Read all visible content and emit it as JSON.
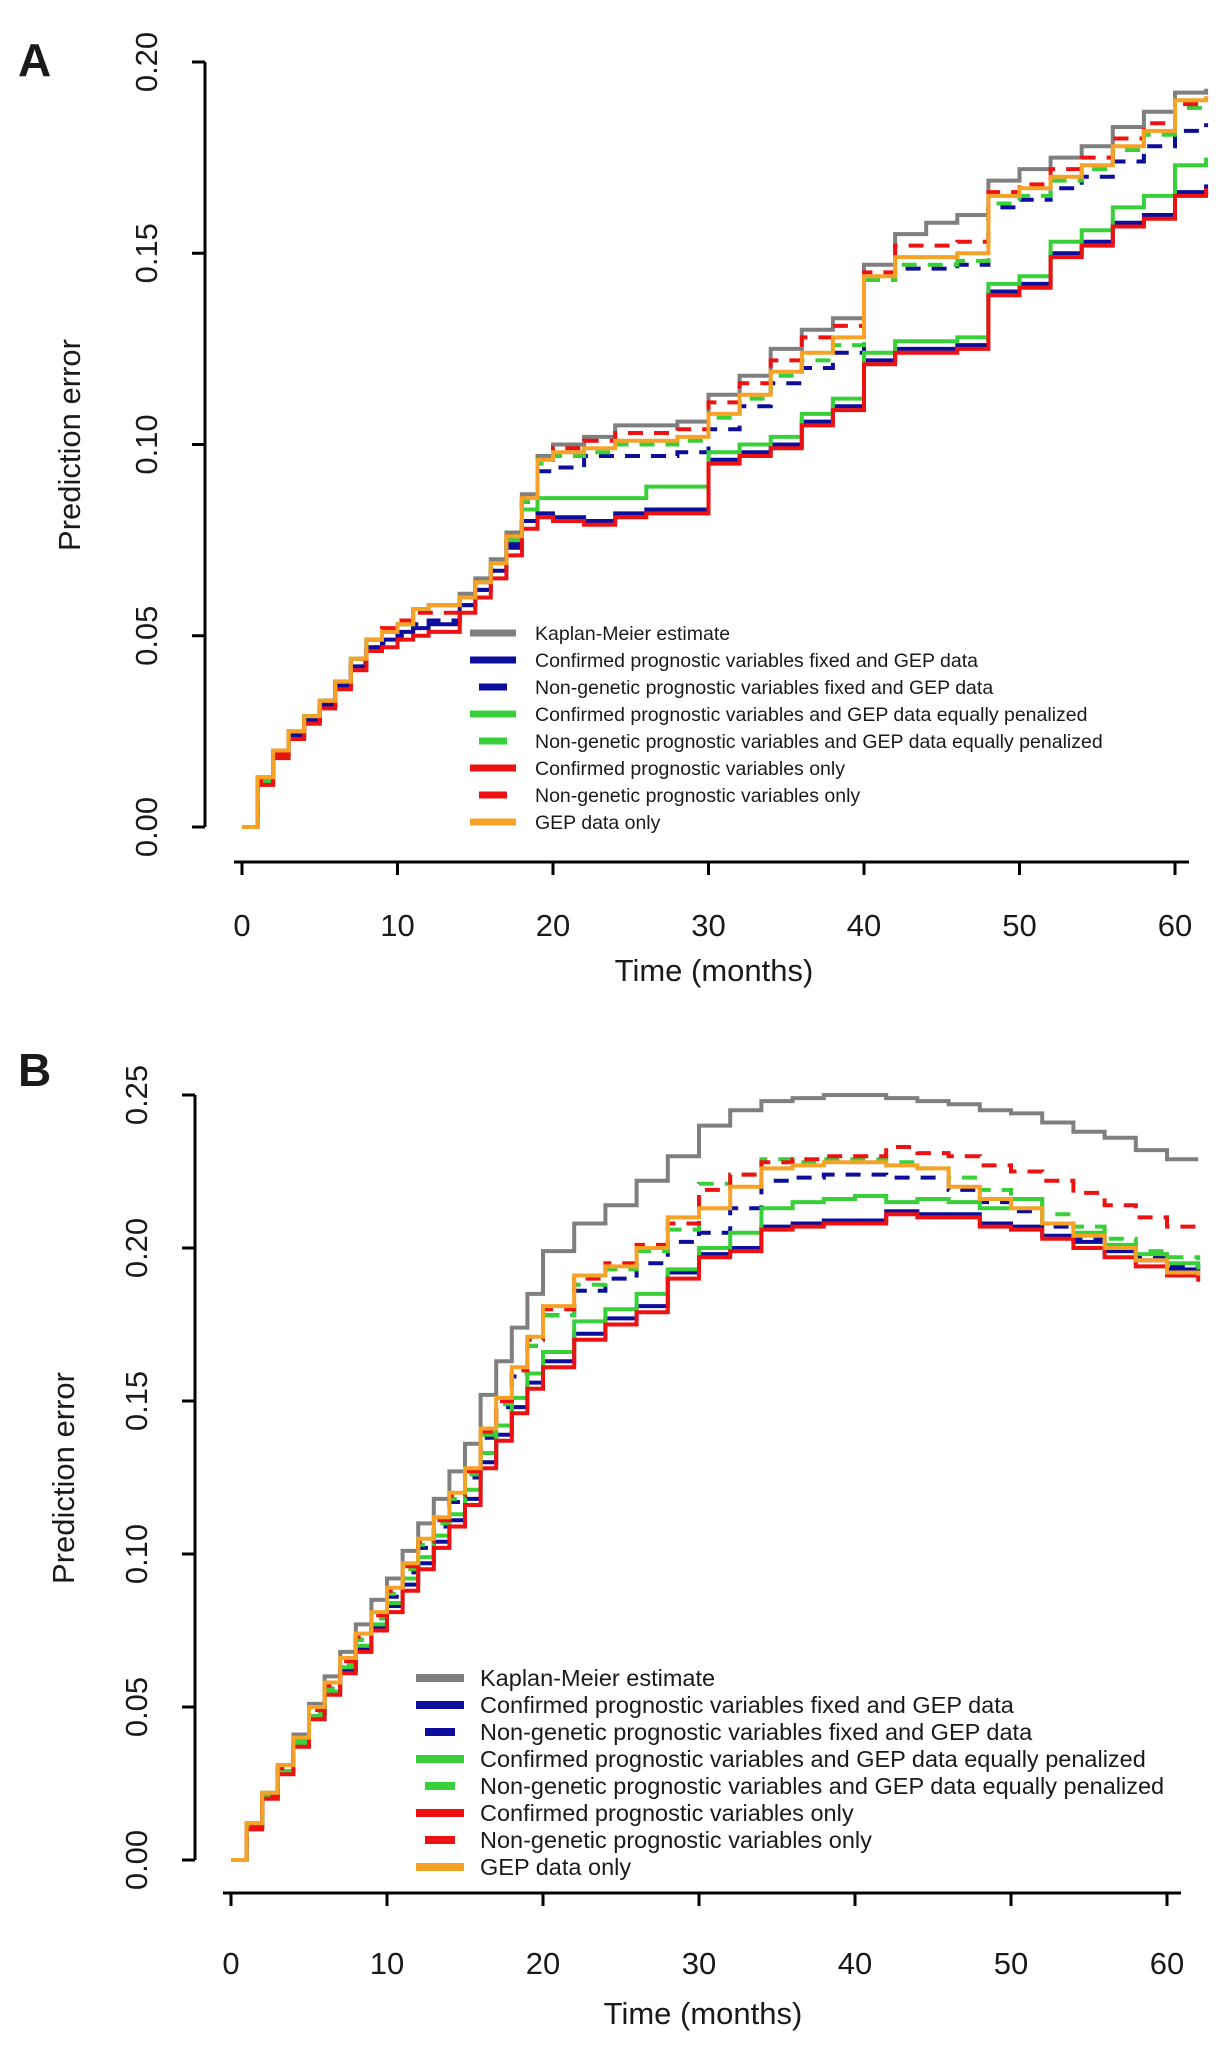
{
  "figure": {
    "background": "#ffffff",
    "text_color": "#1a1a1a",
    "panel_label_color": "#4b6e83",
    "axis_color": "#000000"
  },
  "colors": {
    "gray": "#7f7f7f",
    "navy": "#0d0d9c",
    "green": "#38d038",
    "red": "#ee1111",
    "orange": "#f5a226"
  },
  "chart_data": [
    {
      "panel": "A",
      "type": "line",
      "subtype": "step",
      "xlabel": "Time (months)",
      "ylabel": "Prediction error",
      "xlim": [
        0,
        62
      ],
      "ylim": [
        0,
        0.2
      ],
      "x_ticks": [
        0,
        10,
        20,
        30,
        40,
        50,
        60
      ],
      "y_ticks": [
        0,
        0.05,
        0.1,
        0.15,
        0.2
      ],
      "y_tick_labels": [
        "0.00",
        "0.05",
        "0.10",
        "0.15",
        "0.20"
      ],
      "grid": false,
      "legend_position": "inside-lower-right",
      "x": [
        0,
        1,
        2,
        3,
        4,
        5,
        6,
        7,
        8,
        9,
        10,
        11,
        12,
        13,
        14,
        15,
        16,
        17,
        18,
        19,
        20,
        22,
        24,
        26,
        28,
        30,
        32,
        34,
        36,
        38,
        40,
        42,
        44,
        46,
        48,
        50,
        52,
        54,
        56,
        58,
        60,
        62
      ],
      "series": [
        {
          "name": "Kaplan-Meier estimate",
          "color": "gray",
          "dash": false,
          "values": [
            0.0,
            0.013,
            0.02,
            0.025,
            0.029,
            0.033,
            0.038,
            0.044,
            0.049,
            0.051,
            0.053,
            0.057,
            0.058,
            0.058,
            0.061,
            0.065,
            0.07,
            0.077,
            0.087,
            0.097,
            0.1,
            0.102,
            0.105,
            0.105,
            0.106,
            0.113,
            0.118,
            0.125,
            0.13,
            0.133,
            0.147,
            0.155,
            0.158,
            0.16,
            0.169,
            0.172,
            0.175,
            0.178,
            0.183,
            0.187,
            0.192,
            0.193
          ]
        },
        {
          "name": "Confirmed prognostic variables fixed and GEP data",
          "color": "navy",
          "dash": false,
          "values": [
            0.0,
            0.012,
            0.019,
            0.024,
            0.028,
            0.032,
            0.037,
            0.042,
            0.047,
            0.049,
            0.051,
            0.052,
            0.053,
            0.053,
            0.058,
            0.062,
            0.067,
            0.073,
            0.08,
            0.082,
            0.081,
            0.08,
            0.082,
            0.083,
            0.083,
            0.096,
            0.098,
            0.1,
            0.106,
            0.11,
            0.122,
            0.125,
            0.125,
            0.126,
            0.14,
            0.142,
            0.15,
            0.153,
            0.158,
            0.16,
            0.166,
            0.168
          ]
        },
        {
          "name": "Non-genetic prognostic variables fixed and GEP data",
          "color": "navy",
          "dash": true,
          "values": [
            0.0,
            0.012,
            0.019,
            0.024,
            0.028,
            0.032,
            0.037,
            0.043,
            0.047,
            0.048,
            0.05,
            0.053,
            0.054,
            0.054,
            0.058,
            0.062,
            0.067,
            0.074,
            0.085,
            0.093,
            0.094,
            0.097,
            0.097,
            0.097,
            0.098,
            0.104,
            0.11,
            0.116,
            0.12,
            0.124,
            0.143,
            0.146,
            0.146,
            0.147,
            0.162,
            0.164,
            0.167,
            0.17,
            0.174,
            0.178,
            0.182,
            0.184
          ]
        },
        {
          "name": "Confirmed prognostic variables and GEP data equally penalized",
          "color": "green",
          "dash": false,
          "values": [
            0.0,
            0.012,
            0.019,
            0.025,
            0.029,
            0.033,
            0.038,
            0.044,
            0.049,
            0.051,
            0.053,
            0.057,
            0.058,
            0.058,
            0.06,
            0.064,
            0.069,
            0.075,
            0.083,
            0.086,
            0.086,
            0.086,
            0.086,
            0.089,
            0.089,
            0.098,
            0.1,
            0.102,
            0.108,
            0.112,
            0.124,
            0.127,
            0.127,
            0.128,
            0.142,
            0.144,
            0.153,
            0.156,
            0.162,
            0.165,
            0.173,
            0.175
          ]
        },
        {
          "name": "Non-genetic prognostic variables and GEP data equally penalized",
          "color": "green",
          "dash": true,
          "values": [
            0.0,
            0.012,
            0.019,
            0.025,
            0.029,
            0.033,
            0.038,
            0.044,
            0.049,
            0.051,
            0.053,
            0.057,
            0.058,
            0.058,
            0.06,
            0.064,
            0.069,
            0.075,
            0.085,
            0.095,
            0.097,
            0.098,
            0.1,
            0.1,
            0.101,
            0.107,
            0.112,
            0.118,
            0.122,
            0.126,
            0.143,
            0.147,
            0.147,
            0.148,
            0.163,
            0.165,
            0.169,
            0.172,
            0.177,
            0.181,
            0.188,
            0.19
          ]
        },
        {
          "name": "Confirmed prognostic variables only",
          "color": "red",
          "dash": false,
          "values": [
            0.0,
            0.011,
            0.018,
            0.023,
            0.027,
            0.031,
            0.036,
            0.041,
            0.046,
            0.047,
            0.049,
            0.05,
            0.051,
            0.051,
            0.056,
            0.06,
            0.065,
            0.071,
            0.078,
            0.081,
            0.08,
            0.079,
            0.081,
            0.082,
            0.082,
            0.095,
            0.097,
            0.099,
            0.105,
            0.109,
            0.121,
            0.124,
            0.124,
            0.125,
            0.139,
            0.141,
            0.149,
            0.152,
            0.157,
            0.159,
            0.165,
            0.167
          ]
        },
        {
          "name": "Non-genetic prognostic variables only",
          "color": "red",
          "dash": true,
          "values": [
            0.0,
            0.012,
            0.019,
            0.025,
            0.029,
            0.033,
            0.038,
            0.044,
            0.049,
            0.052,
            0.054,
            0.056,
            0.056,
            0.056,
            0.06,
            0.064,
            0.069,
            0.076,
            0.086,
            0.096,
            0.099,
            0.101,
            0.103,
            0.103,
            0.104,
            0.111,
            0.116,
            0.122,
            0.128,
            0.131,
            0.145,
            0.152,
            0.152,
            0.153,
            0.166,
            0.168,
            0.172,
            0.175,
            0.18,
            0.184,
            0.189,
            0.191
          ]
        },
        {
          "name": "GEP data only",
          "color": "orange",
          "dash": false,
          "values": [
            0.0,
            0.013,
            0.02,
            0.025,
            0.029,
            0.033,
            0.038,
            0.044,
            0.049,
            0.051,
            0.053,
            0.057,
            0.058,
            0.058,
            0.06,
            0.064,
            0.069,
            0.076,
            0.086,
            0.096,
            0.098,
            0.099,
            0.101,
            0.101,
            0.102,
            0.108,
            0.113,
            0.119,
            0.124,
            0.128,
            0.144,
            0.149,
            0.149,
            0.15,
            0.165,
            0.167,
            0.17,
            0.173,
            0.178,
            0.182,
            0.19,
            0.191
          ]
        }
      ]
    },
    {
      "panel": "B",
      "type": "line",
      "subtype": "step",
      "xlabel": "Time (months)",
      "ylabel": "Prediction error",
      "xlim": [
        0,
        62
      ],
      "ylim": [
        0,
        0.25
      ],
      "x_ticks": [
        0,
        10,
        20,
        30,
        40,
        50,
        60
      ],
      "y_ticks": [
        0,
        0.05,
        0.1,
        0.15,
        0.2,
        0.25
      ],
      "y_tick_labels": [
        "0.00",
        "0.05",
        "0.10",
        "0.15",
        "0.20",
        "0.25"
      ],
      "grid": false,
      "legend_position": "inside-lower-right",
      "x": [
        0,
        1,
        2,
        3,
        4,
        5,
        6,
        7,
        8,
        9,
        10,
        11,
        12,
        13,
        14,
        15,
        16,
        17,
        18,
        19,
        20,
        22,
        24,
        26,
        28,
        30,
        32,
        34,
        36,
        38,
        40,
        42,
        44,
        46,
        48,
        50,
        52,
        54,
        56,
        58,
        60,
        62
      ],
      "series": [
        {
          "name": "Kaplan-Meier estimate",
          "color": "gray",
          "dash": false,
          "values": [
            0.0,
            0.012,
            0.022,
            0.031,
            0.041,
            0.051,
            0.06,
            0.068,
            0.077,
            0.085,
            0.092,
            0.101,
            0.11,
            0.118,
            0.127,
            0.136,
            0.152,
            0.163,
            0.174,
            0.185,
            0.199,
            0.208,
            0.214,
            0.222,
            0.23,
            0.24,
            0.245,
            0.248,
            0.249,
            0.25,
            0.25,
            0.249,
            0.248,
            0.247,
            0.245,
            0.244,
            0.241,
            0.238,
            0.236,
            0.232,
            0.229,
            0.229
          ]
        },
        {
          "name": "Confirmed prognostic variables fixed and GEP data",
          "color": "navy",
          "dash": false,
          "values": [
            0.0,
            0.011,
            0.021,
            0.029,
            0.038,
            0.047,
            0.055,
            0.062,
            0.069,
            0.076,
            0.083,
            0.09,
            0.097,
            0.104,
            0.111,
            0.118,
            0.13,
            0.139,
            0.148,
            0.156,
            0.163,
            0.172,
            0.177,
            0.181,
            0.192,
            0.198,
            0.2,
            0.207,
            0.208,
            0.209,
            0.209,
            0.212,
            0.211,
            0.211,
            0.208,
            0.207,
            0.204,
            0.202,
            0.199,
            0.196,
            0.193,
            0.192
          ]
        },
        {
          "name": "Non-genetic prognostic variables fixed and GEP data",
          "color": "navy",
          "dash": true,
          "values": [
            0.0,
            0.011,
            0.021,
            0.03,
            0.039,
            0.048,
            0.056,
            0.064,
            0.072,
            0.079,
            0.086,
            0.094,
            0.102,
            0.109,
            0.117,
            0.125,
            0.138,
            0.148,
            0.158,
            0.168,
            0.178,
            0.186,
            0.19,
            0.195,
            0.202,
            0.205,
            0.213,
            0.222,
            0.223,
            0.224,
            0.224,
            0.223,
            0.223,
            0.219,
            0.215,
            0.212,
            0.207,
            0.203,
            0.2,
            0.197,
            0.194,
            0.193
          ]
        },
        {
          "name": "Confirmed prognostic variables and GEP data equally penalized",
          "color": "green",
          "dash": false,
          "values": [
            0.0,
            0.011,
            0.021,
            0.029,
            0.038,
            0.047,
            0.055,
            0.063,
            0.07,
            0.077,
            0.084,
            0.092,
            0.099,
            0.106,
            0.113,
            0.121,
            0.133,
            0.142,
            0.151,
            0.159,
            0.166,
            0.176,
            0.18,
            0.185,
            0.193,
            0.2,
            0.205,
            0.213,
            0.215,
            0.216,
            0.217,
            0.215,
            0.216,
            0.215,
            0.213,
            0.216,
            0.208,
            0.205,
            0.201,
            0.198,
            0.195,
            0.193
          ]
        },
        {
          "name": "Non-genetic prognostic variables and GEP data equally penalized",
          "color": "green",
          "dash": true,
          "values": [
            0.0,
            0.011,
            0.021,
            0.03,
            0.039,
            0.048,
            0.056,
            0.064,
            0.072,
            0.079,
            0.087,
            0.095,
            0.103,
            0.11,
            0.118,
            0.126,
            0.139,
            0.149,
            0.159,
            0.168,
            0.178,
            0.188,
            0.193,
            0.199,
            0.206,
            0.221,
            0.224,
            0.229,
            0.228,
            0.229,
            0.229,
            0.228,
            0.226,
            0.223,
            0.219,
            0.216,
            0.211,
            0.207,
            0.203,
            0.199,
            0.197,
            0.196
          ]
        },
        {
          "name": "Confirmed prognostic variables only",
          "color": "red",
          "dash": false,
          "values": [
            0.0,
            0.01,
            0.02,
            0.028,
            0.037,
            0.046,
            0.054,
            0.061,
            0.068,
            0.075,
            0.081,
            0.088,
            0.095,
            0.102,
            0.109,
            0.116,
            0.128,
            0.137,
            0.146,
            0.154,
            0.161,
            0.17,
            0.175,
            0.179,
            0.19,
            0.197,
            0.199,
            0.206,
            0.207,
            0.208,
            0.208,
            0.211,
            0.21,
            0.21,
            0.207,
            0.206,
            0.203,
            0.2,
            0.197,
            0.194,
            0.191,
            0.189
          ]
        },
        {
          "name": "Non-genetic prognostic variables only",
          "color": "red",
          "dash": true,
          "values": [
            0.0,
            0.011,
            0.021,
            0.03,
            0.04,
            0.049,
            0.057,
            0.065,
            0.073,
            0.08,
            0.088,
            0.096,
            0.104,
            0.111,
            0.119,
            0.127,
            0.14,
            0.15,
            0.16,
            0.17,
            0.18,
            0.19,
            0.195,
            0.201,
            0.208,
            0.219,
            0.224,
            0.228,
            0.229,
            0.23,
            0.23,
            0.233,
            0.231,
            0.23,
            0.227,
            0.225,
            0.222,
            0.218,
            0.214,
            0.21,
            0.207,
            0.205
          ]
        },
        {
          "name": "GEP data only",
          "color": "orange",
          "dash": false,
          "values": [
            0.0,
            0.012,
            0.022,
            0.031,
            0.04,
            0.05,
            0.058,
            0.066,
            0.074,
            0.081,
            0.089,
            0.097,
            0.105,
            0.112,
            0.12,
            0.128,
            0.141,
            0.151,
            0.161,
            0.171,
            0.181,
            0.191,
            0.194,
            0.2,
            0.21,
            0.213,
            0.22,
            0.226,
            0.227,
            0.228,
            0.228,
            0.227,
            0.226,
            0.22,
            0.216,
            0.213,
            0.208,
            0.204,
            0.2,
            0.196,
            0.192,
            0.191
          ]
        }
      ]
    }
  ]
}
